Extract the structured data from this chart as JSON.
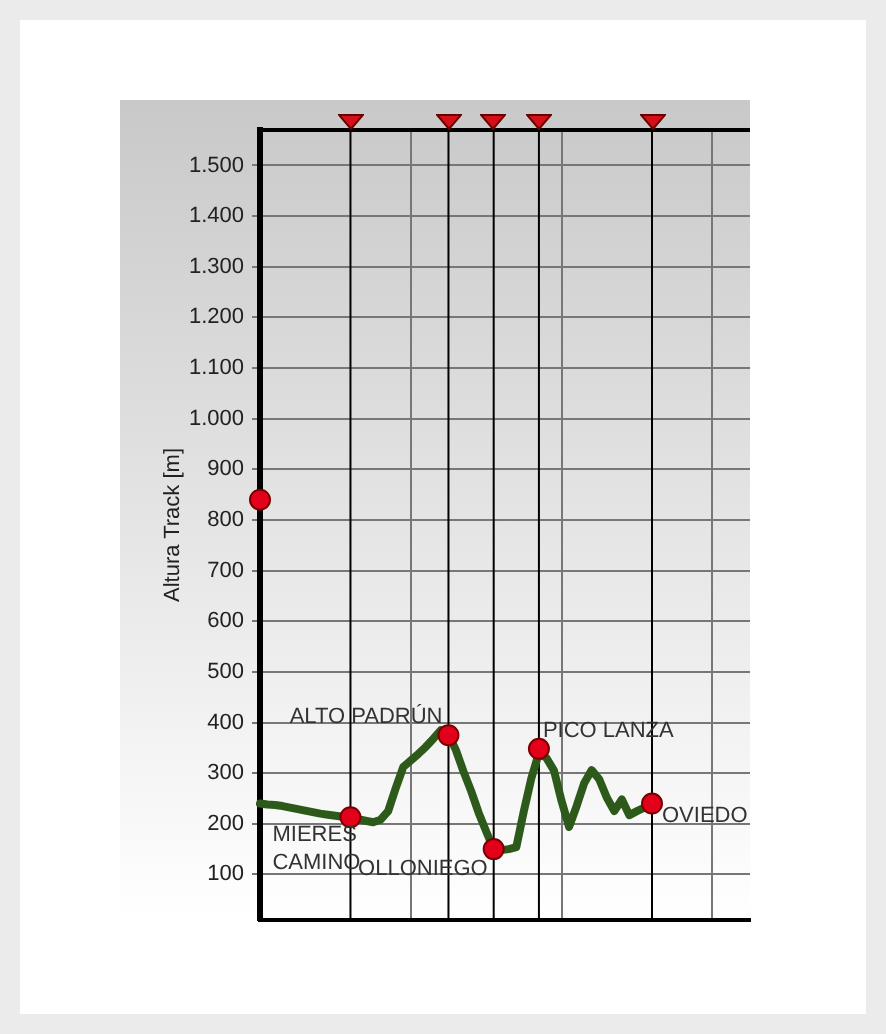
{
  "chart_data": {
    "type": "line",
    "ylabel": "Altura Track [m]",
    "categories": [
      null,
      null,
      null,
      null,
      null,
      null,
      null,
      null,
      null,
      null,
      null,
      null,
      null,
      null,
      null,
      null,
      null,
      null,
      null,
      null,
      null,
      null,
      null,
      null,
      null,
      null,
      null,
      null,
      null,
      null,
      null,
      null,
      null,
      null,
      null,
      null,
      null,
      null,
      null,
      null,
      null,
      null,
      null,
      null,
      null,
      null,
      null,
      null,
      null,
      null,
      null,
      null,
      null,
      null,
      null,
      null,
      null,
      null,
      null,
      null,
      null,
      null,
      null,
      null,
      null,
      null
    ],
    "ylim": [
      10,
      1570
    ],
    "yticks": [
      100,
      200,
      300,
      400,
      500,
      600,
      700,
      800,
      900,
      {
        "value": 1000,
        "label": "1.000"
      },
      {
        "value": 1100,
        "label": "1.100"
      },
      {
        "value": 1200,
        "label": "1.200"
      },
      {
        "value": 1300,
        "label": "1.300"
      },
      {
        "value": 1400,
        "label": "1.400"
      },
      {
        "value": 1500,
        "label": "1.500"
      }
    ],
    "tick_labels": "y",
    "grid": true,
    "series": [
      {
        "color": "#2d5a1b",
        "marker": "none",
        "values": [
          240,
          238,
          237,
          235,
          232,
          229,
          226,
          223,
          220,
          218,
          216,
          214,
          212,
          209,
          206,
          203,
          208,
          225,
          270,
          312,
          325,
          338,
          352,
          368,
          385,
          377,
          345,
          303,
          265,
          222,
          185,
          150,
          148,
          150,
          154,
          225,
          290,
          340,
          330,
          305,
          245,
          194,
          235,
          280,
          306,
          288,
          252,
          225,
          248,
          217,
          225,
          232,
          240,
          null,
          null,
          null,
          null,
          null,
          null,
          null,
          null,
          null,
          null,
          null,
          null,
          null
        ]
      },
      {
        "type": "scatter",
        "color": "#e3001b",
        "marker": "circle",
        "values": [
          840,
          null,
          null,
          null,
          null,
          null,
          null,
          null,
          null,
          null,
          null,
          null,
          213,
          null,
          null,
          null,
          null,
          null,
          null,
          null,
          null,
          null,
          null,
          null,
          null,
          375,
          null,
          null,
          null,
          null,
          null,
          150,
          null,
          null,
          null,
          null,
          null,
          348,
          null,
          null,
          null,
          null,
          null,
          null,
          null,
          null,
          null,
          null,
          null,
          null,
          null,
          null,
          240,
          null,
          null,
          null,
          null,
          null,
          null,
          null,
          null,
          null,
          null,
          null,
          null,
          null
        ],
        "value_labels": [
          null,
          null,
          null,
          null,
          null,
          null,
          null,
          null,
          null,
          null,
          null,
          null,
          "MIERES\nCAMINO",
          null,
          null,
          null,
          null,
          null,
          null,
          null,
          null,
          null,
          null,
          null,
          null,
          "ALTO PADRÚN",
          null,
          null,
          null,
          null,
          null,
          "OLLONIEGO",
          null,
          null,
          null,
          null,
          null,
          "PICO LANZA",
          null,
          null,
          null,
          null,
          null,
          null,
          null,
          null,
          null,
          null,
          null,
          null,
          null,
          null,
          "OVIEDO",
          null,
          null,
          null,
          null,
          null,
          null,
          null,
          null,
          null,
          null,
          null,
          null,
          null
        ]
      }
    ]
  }
}
